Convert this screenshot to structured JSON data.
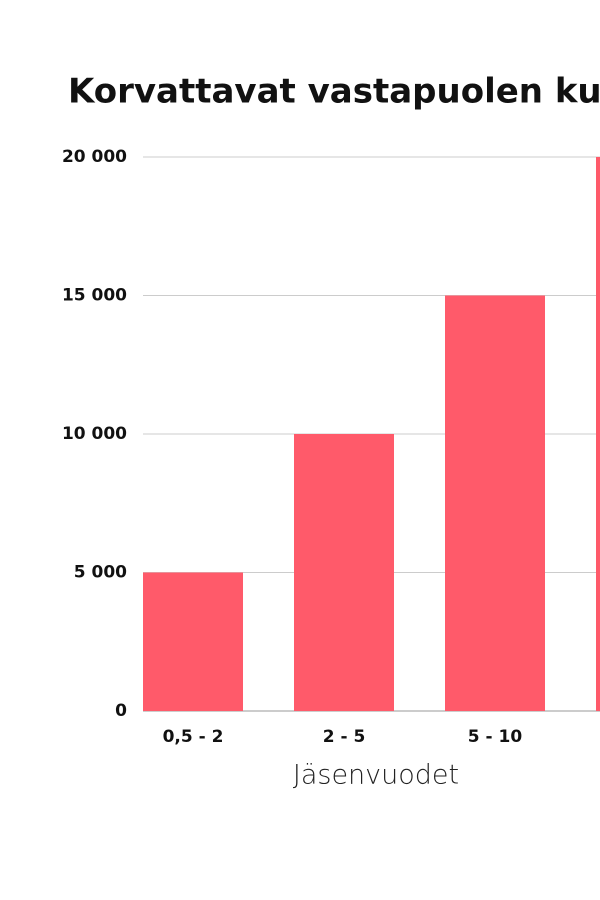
{
  "chart_data": {
    "type": "bar",
    "title": "Korvattavat vastapuolen ku",
    "x_label": "Jäsenvuodet",
    "categories": [
      "0,5 - 2",
      "2 - 5",
      "5 - 10",
      null
    ],
    "values": [
      5000,
      10000,
      15000,
      20000
    ],
    "color": "#ff5a6a",
    "ylim": [
      0,
      20000
    ],
    "yticks": [
      0,
      {
        "value": 5000,
        "label": "5 000"
      },
      {
        "value": 10000,
        "label": "10 000"
      },
      {
        "value": 15000,
        "label": "15 000"
      },
      {
        "value": 20000,
        "label": "20 000"
      }
    ],
    "grid": true
  }
}
